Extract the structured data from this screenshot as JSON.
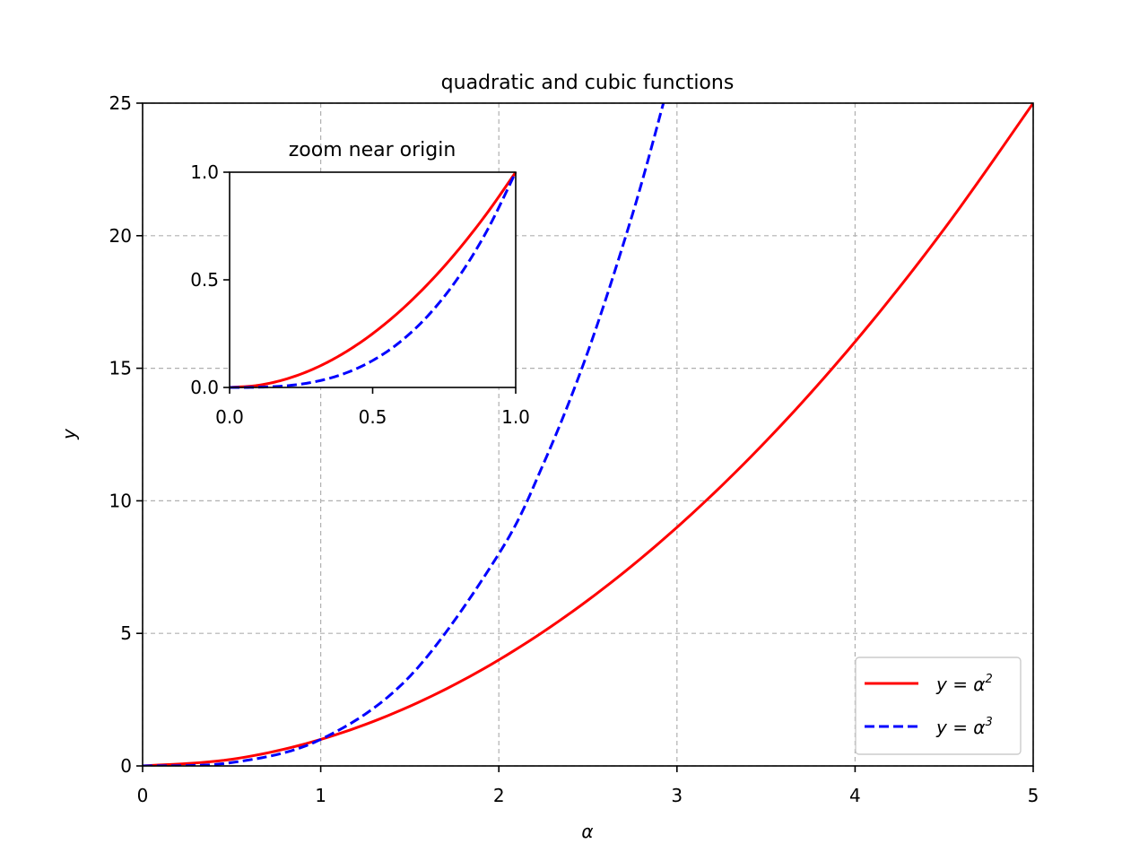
{
  "chart_data": [
    {
      "type": "line",
      "title": "quadratic and cubic functions",
      "xlabel": "α",
      "ylabel": "y",
      "xlim": [
        0,
        5
      ],
      "ylim": [
        0,
        25
      ],
      "xticks": [
        "0",
        "1",
        "2",
        "3",
        "4",
        "5"
      ],
      "yticks": [
        "0",
        "5",
        "10",
        "15",
        "20",
        "25"
      ],
      "grid": true,
      "legend": "lower-right",
      "series": [
        {
          "name": "y = α²",
          "name_base": "y = α",
          "name_exp": "2",
          "color": "#ff0000",
          "style": "solid",
          "x": [
            0,
            0.5,
            1,
            1.5,
            2,
            2.5,
            3,
            3.5,
            4,
            4.5,
            5
          ],
          "y": [
            0,
            0.25,
            1,
            2.25,
            4,
            6.25,
            9,
            12.25,
            16,
            20.25,
            25
          ]
        },
        {
          "name": "y = α³",
          "name_base": "y = α",
          "name_exp": "3",
          "color": "#0000ff",
          "style": "dashed",
          "x": [
            0,
            0.5,
            1,
            1.5,
            2,
            2.25,
            2.5,
            2.75,
            2.924
          ],
          "y": [
            0,
            0.125,
            1,
            3.375,
            8,
            11.39,
            15.625,
            20.8,
            25
          ]
        }
      ]
    },
    {
      "type": "line",
      "title": "zoom near origin",
      "xlim": [
        0,
        1
      ],
      "ylim": [
        0,
        1
      ],
      "xticks": [
        "0.0",
        "0.5",
        "1.0"
      ],
      "yticks": [
        "0.0",
        "0.5",
        "1.0"
      ],
      "grid": false,
      "series": [
        {
          "color": "#ff0000",
          "style": "solid",
          "x": [
            0,
            0.1,
            0.2,
            0.3,
            0.4,
            0.5,
            0.6,
            0.7,
            0.8,
            0.9,
            1
          ],
          "y": [
            0,
            0.01,
            0.04,
            0.09,
            0.16,
            0.25,
            0.36,
            0.49,
            0.64,
            0.81,
            1
          ]
        },
        {
          "color": "#0000ff",
          "style": "dashed",
          "x": [
            0,
            0.1,
            0.2,
            0.3,
            0.4,
            0.5,
            0.6,
            0.7,
            0.8,
            0.9,
            1
          ],
          "y": [
            0,
            0.001,
            0.008,
            0.027,
            0.064,
            0.125,
            0.216,
            0.343,
            0.512,
            0.729,
            1
          ]
        }
      ]
    }
  ]
}
